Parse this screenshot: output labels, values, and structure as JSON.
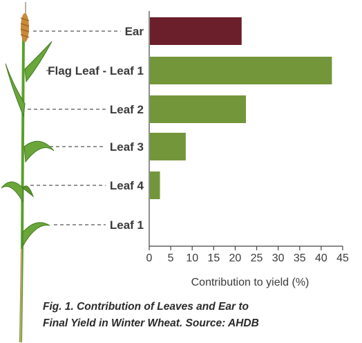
{
  "chart_data": {
    "type": "bar",
    "orientation": "horizontal",
    "categories": [
      "Ear",
      "Flag Leaf - Leaf 1",
      "Leaf 2",
      "Leaf 3",
      "Leaf 4",
      "Leaf 1"
    ],
    "values": [
      21.5,
      42.5,
      22.5,
      8.5,
      2.5,
      0
    ],
    "bar_colors": [
      "#6b1f2a",
      "#74963a",
      "#74963a",
      "#74963a",
      "#74963a",
      "#74963a"
    ],
    "xlabel": "Contribution to yield (%)",
    "ylabel": "",
    "xlim": [
      0,
      45
    ],
    "xticks": [
      "0",
      "5",
      "10",
      "15",
      "20",
      "25",
      "30",
      "35",
      "40",
      "45"
    ],
    "grid": false,
    "caption_lines": [
      "Fig. 1. Contribution of Leaves and Ear to",
      "Final Yield in Winter Wheat. Source: AHDB"
    ]
  },
  "colors": {
    "ear_bar": "#6b1f2a",
    "leaf_bar": "#74963a",
    "stem": "#5aa02c",
    "leaf": "#6ba63a",
    "ear": "#c98a3a",
    "axis": "#444444"
  },
  "icons": [
    "wheat-plant-illustration"
  ]
}
